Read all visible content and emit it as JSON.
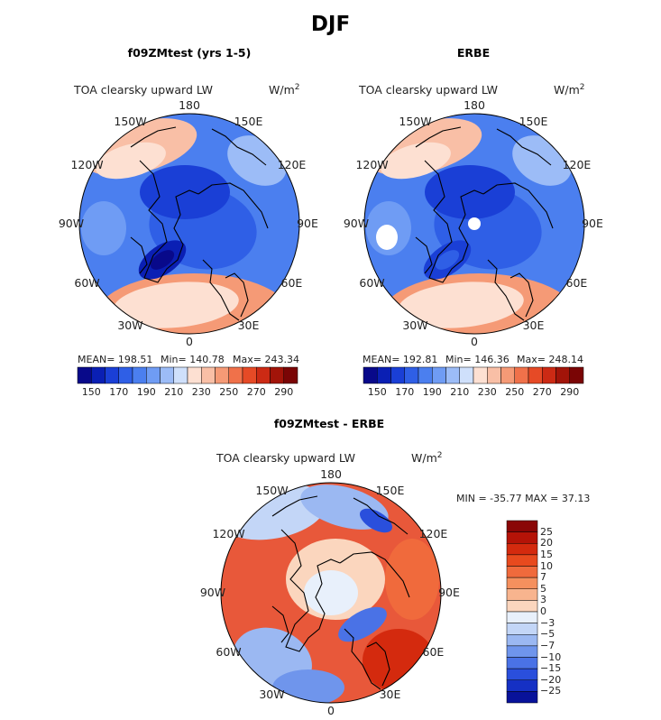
{
  "figure": {
    "title": "DJF"
  },
  "panels": [
    {
      "id": "model",
      "title": "f09ZMtest (yrs 1-5)",
      "variable_label": "TOA clearsky upward LW",
      "units": "W/m",
      "units_exp": "2",
      "lon_labels": [
        "180",
        "150E",
        "120E",
        "90E",
        "60E",
        "30E",
        "0",
        "30W",
        "60W",
        "90W",
        "120W",
        "150W"
      ],
      "stats": {
        "mean": "MEAN= 198.51",
        "min": "Min= 140.78",
        "max": "Max= 243.34"
      },
      "colorbar": {
        "ticks": [
          "150",
          "170",
          "190",
          "210",
          "230",
          "250",
          "270",
          "290"
        ],
        "colors": [
          "#08098a",
          "#0a1fb4",
          "#1a3fd6",
          "#2f5fe6",
          "#4b7fef",
          "#6f9cf4",
          "#9cbcf7",
          "#cfe0fb",
          "#fde0d2",
          "#f9bfa6",
          "#f59a76",
          "#f0714a",
          "#e64a26",
          "#cc2a14",
          "#a21409",
          "#7a0505"
        ]
      }
    },
    {
      "id": "obs",
      "title": "ERBE",
      "variable_label": "TOA clearsky upward LW",
      "units": "W/m",
      "units_exp": "2",
      "lon_labels": [
        "180",
        "150E",
        "120E",
        "90E",
        "60E",
        "30E",
        "0",
        "30W",
        "60W",
        "90W",
        "120W",
        "150W"
      ],
      "stats": {
        "mean": "MEAN= 192.81",
        "min": "Min= 146.36",
        "max": "Max= 248.14"
      },
      "colorbar": {
        "ticks": [
          "150",
          "170",
          "190",
          "210",
          "230",
          "250",
          "270",
          "290"
        ],
        "colors": [
          "#08098a",
          "#0a1fb4",
          "#1a3fd6",
          "#2f5fe6",
          "#4b7fef",
          "#6f9cf4",
          "#9cbcf7",
          "#cfe0fb",
          "#fde0d2",
          "#f9bfa6",
          "#f59a76",
          "#f0714a",
          "#e64a26",
          "#cc2a14",
          "#a21409",
          "#7a0505"
        ]
      }
    },
    {
      "id": "diff",
      "title": "f09ZMtest - ERBE",
      "variable_label": "TOA clearsky upward LW",
      "units": "W/m",
      "units_exp": "2",
      "lon_labels": [
        "180",
        "150E",
        "120E",
        "90E",
        "60E",
        "30E",
        "0",
        "30W",
        "60W",
        "90W",
        "120W",
        "150W"
      ],
      "stats": {
        "minmax": "MIN = -35.77 MAX =  37.13"
      },
      "colorbar": {
        "ticks": [
          "25",
          "20",
          "15",
          "10",
          "7",
          "5",
          "3",
          "0",
          "−3",
          "−5",
          "−7",
          "−10",
          "−15",
          "−20",
          "−25"
        ],
        "colors": [
          "#8a0606",
          "#b51307",
          "#d42a0e",
          "#e84a1e",
          "#f06a3c",
          "#f5905e",
          "#f8b48e",
          "#fbd6be",
          "#e8f0fb",
          "#c3d6f7",
          "#9bb8f2",
          "#6f95ec",
          "#4a72e6",
          "#2a4fdc",
          "#1530c4",
          "#08129a"
        ]
      }
    }
  ]
}
